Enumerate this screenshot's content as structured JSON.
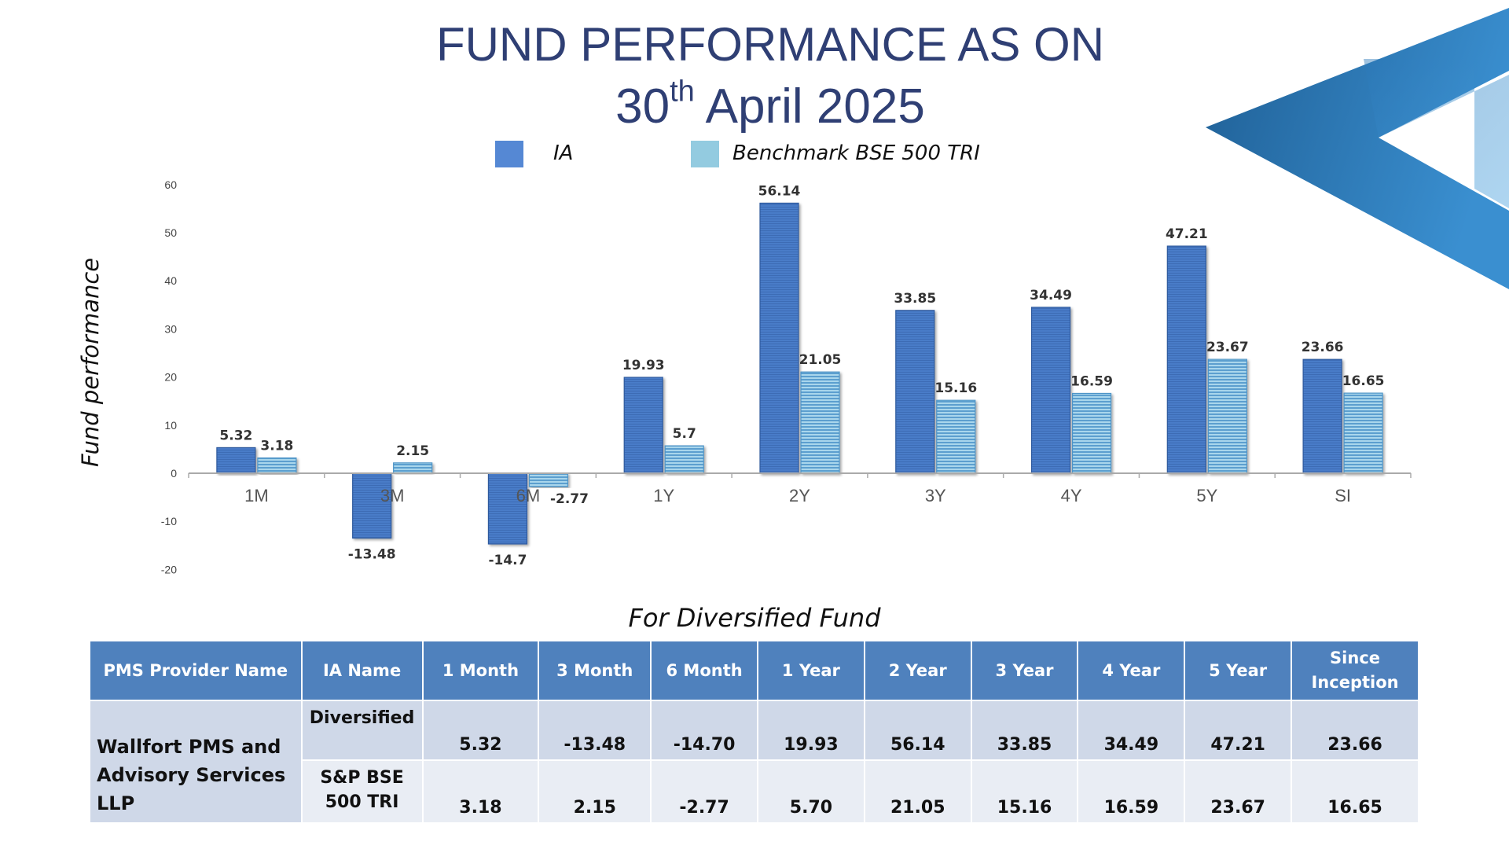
{
  "header": {
    "title_line1": "FUND PERFORMANCE AS ON",
    "title_line2_day": "30",
    "title_line2_suffix": "th",
    "title_line2_rest": " April 2025"
  },
  "colors": {
    "title": "#2F3F74",
    "ia_bar": "#4A7BC8",
    "benchmark_bar": "#8CC6E2",
    "table_header": "#4F81BD",
    "decor": "#2A6FA8"
  },
  "chart_data": {
    "type": "bar",
    "categories": [
      "1M",
      "3M",
      "6M",
      "1Y",
      "2Y",
      "3Y",
      "4Y",
      "5Y",
      "SI"
    ],
    "series": [
      {
        "name": "IA",
        "values": [
          5.32,
          -13.48,
          -14.7,
          19.93,
          56.14,
          33.85,
          34.49,
          47.21,
          23.66
        ]
      },
      {
        "name": "Benchmark BSE 500 TRI",
        "values": [
          3.18,
          2.15,
          -2.77,
          5.7,
          21.05,
          15.16,
          16.59,
          23.67,
          16.65
        ]
      }
    ],
    "data_labels": {
      "IA": [
        "5.32",
        "-13.48",
        "-14.7",
        "19.93",
        "56.14",
        "33.85",
        "34.49",
        "47.21",
        "23.66"
      ],
      "Benchmark BSE 500 TRI": [
        "3.18",
        "2.15",
        "-2.77",
        "5.7",
        "21.05",
        "15.16",
        "16.59",
        "23.67",
        "16.65"
      ]
    },
    "ylabel": "Fund performance",
    "xlabel": "",
    "ylim": [
      -20,
      60
    ],
    "yticks": [
      -20,
      -10,
      0,
      10,
      20,
      30,
      40,
      50,
      60
    ],
    "legend_position": "top-center",
    "grid": false
  },
  "subtitle": "For Diversified Fund",
  "table": {
    "headers": [
      "PMS Provider Name",
      "IA Name",
      "1 Month",
      "3 Month",
      "6 Month",
      "1 Year",
      "2 Year",
      "3 Year",
      "4 Year",
      "5 Year",
      "Since Inception"
    ],
    "provider_name": "Wallfort PMS and Advisory Services LLP",
    "rows": [
      {
        "ia_name": "Diversified",
        "values": [
          "5.32",
          "-13.48",
          "-14.70",
          "19.93",
          "56.14",
          "33.85",
          "34.49",
          "47.21",
          "23.66"
        ]
      },
      {
        "ia_name": "S&P BSE 500 TRI",
        "values": [
          "3.18",
          "2.15",
          "-2.77",
          "5.70",
          "21.05",
          "15.16",
          "16.59",
          "23.67",
          "16.65"
        ]
      }
    ]
  }
}
